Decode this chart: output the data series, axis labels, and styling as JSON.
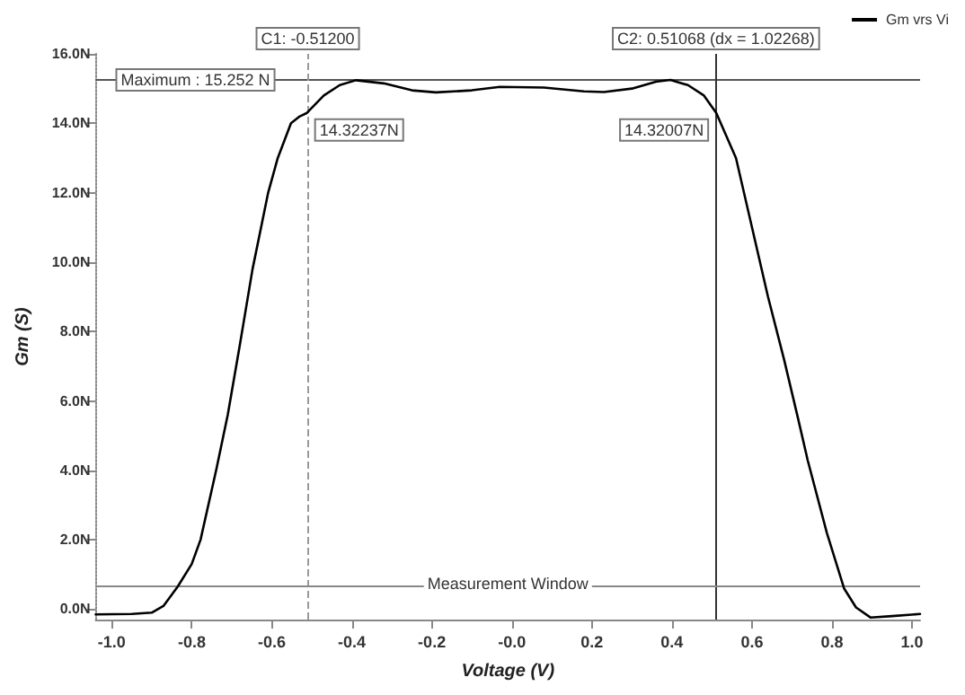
{
  "chart_data": {
    "type": "line",
    "xlabel": "Voltage (V)",
    "ylabel": "Gm (S)",
    "legend": "top right",
    "marker": "none",
    "grid": false,
    "xlim": [
      -1.04,
      1.02
    ],
    "ylim": [
      -0.3,
      16
    ],
    "xticks": [
      {
        "value": -1,
        "label": "-1.0"
      },
      {
        "value": -0.8,
        "label": "-0.8"
      },
      {
        "value": -0.6,
        "label": "-0.6"
      },
      {
        "value": -0.4,
        "label": "-0.4"
      },
      {
        "value": -0.2,
        "label": "-0.2"
      },
      {
        "value": 0,
        "label": "-0.0"
      },
      {
        "value": 0.2,
        "label": "0.2"
      },
      {
        "value": 0.4,
        "label": "0.4"
      },
      {
        "value": 0.6,
        "label": "0.6"
      },
      {
        "value": 0.8,
        "label": "0.8"
      },
      {
        "value": 1,
        "label": "1.0"
      }
    ],
    "yticks": [
      {
        "value": 0,
        "label": "0.0N"
      },
      {
        "value": 2,
        "label": "2.0N"
      },
      {
        "value": 4,
        "label": "4.0N"
      },
      {
        "value": 6,
        "label": "6.0N"
      },
      {
        "value": 8,
        "label": "8.0N"
      },
      {
        "value": 10,
        "label": "10.0N"
      },
      {
        "value": 12,
        "label": "12.0N"
      },
      {
        "value": 14,
        "label": "14.0N"
      },
      {
        "value": 16,
        "label": "16.0N"
      }
    ],
    "series": [
      {
        "name": "Gm vrs Vi",
        "color": "#000000",
        "line_style": "solid",
        "x": [
          -1.04,
          -0.95,
          -0.9,
          -0.87,
          -0.835,
          -0.8,
          -0.778,
          -0.739,
          -0.71,
          -0.68,
          -0.648,
          -0.609,
          -0.585,
          -0.552,
          -0.53,
          -0.512,
          -0.47,
          -0.43,
          -0.39,
          -0.32,
          -0.25,
          -0.19,
          -0.1,
          -0.03,
          0.08,
          0.18,
          0.23,
          0.3,
          0.36,
          0.396,
          0.44,
          0.48,
          0.51068,
          0.56,
          0.6,
          0.64,
          0.68,
          0.715,
          0.739,
          0.787,
          0.83,
          0.86,
          0.896,
          0.95,
          1.02
        ],
        "values": [
          -0.15,
          -0.14,
          -0.1,
          0.1,
          0.65,
          1.3,
          2.0,
          4.0,
          5.6,
          7.6,
          9.8,
          12.0,
          13.0,
          14.0,
          14.2,
          14.3,
          14.8,
          15.1,
          15.24,
          15.15,
          14.95,
          14.89,
          14.95,
          15.05,
          15.03,
          14.92,
          14.9,
          15.0,
          15.2,
          15.25,
          15.1,
          14.8,
          14.3,
          13.0,
          11.0,
          9.0,
          7.2,
          5.5,
          4.3,
          2.2,
          0.6,
          0.05,
          -0.24,
          -0.2,
          -0.14
        ]
      }
    ],
    "ref_lines": [
      {
        "axis": "y",
        "value": 15.252,
        "label": "Maximum : 15.252 N",
        "color": "#555555",
        "line_style": "solid"
      },
      {
        "axis": "x",
        "value": -0.512,
        "label": "C1: -0.51200",
        "color": "#999999",
        "line_style": "dashed"
      },
      {
        "axis": "x",
        "value": 0.51068,
        "label": "C2: 0.51068 (dx = 1.02268)",
        "color": "#333333",
        "line_style": "solid"
      },
      {
        "axis": "y",
        "value": 0.65,
        "label": "Measurement Window",
        "color": "#888888",
        "line_style": "solid"
      }
    ],
    "annotations": [
      {
        "text": "14.32237N",
        "x": -0.512
      },
      {
        "text": "14.32007N",
        "x": 0.51068
      }
    ]
  }
}
